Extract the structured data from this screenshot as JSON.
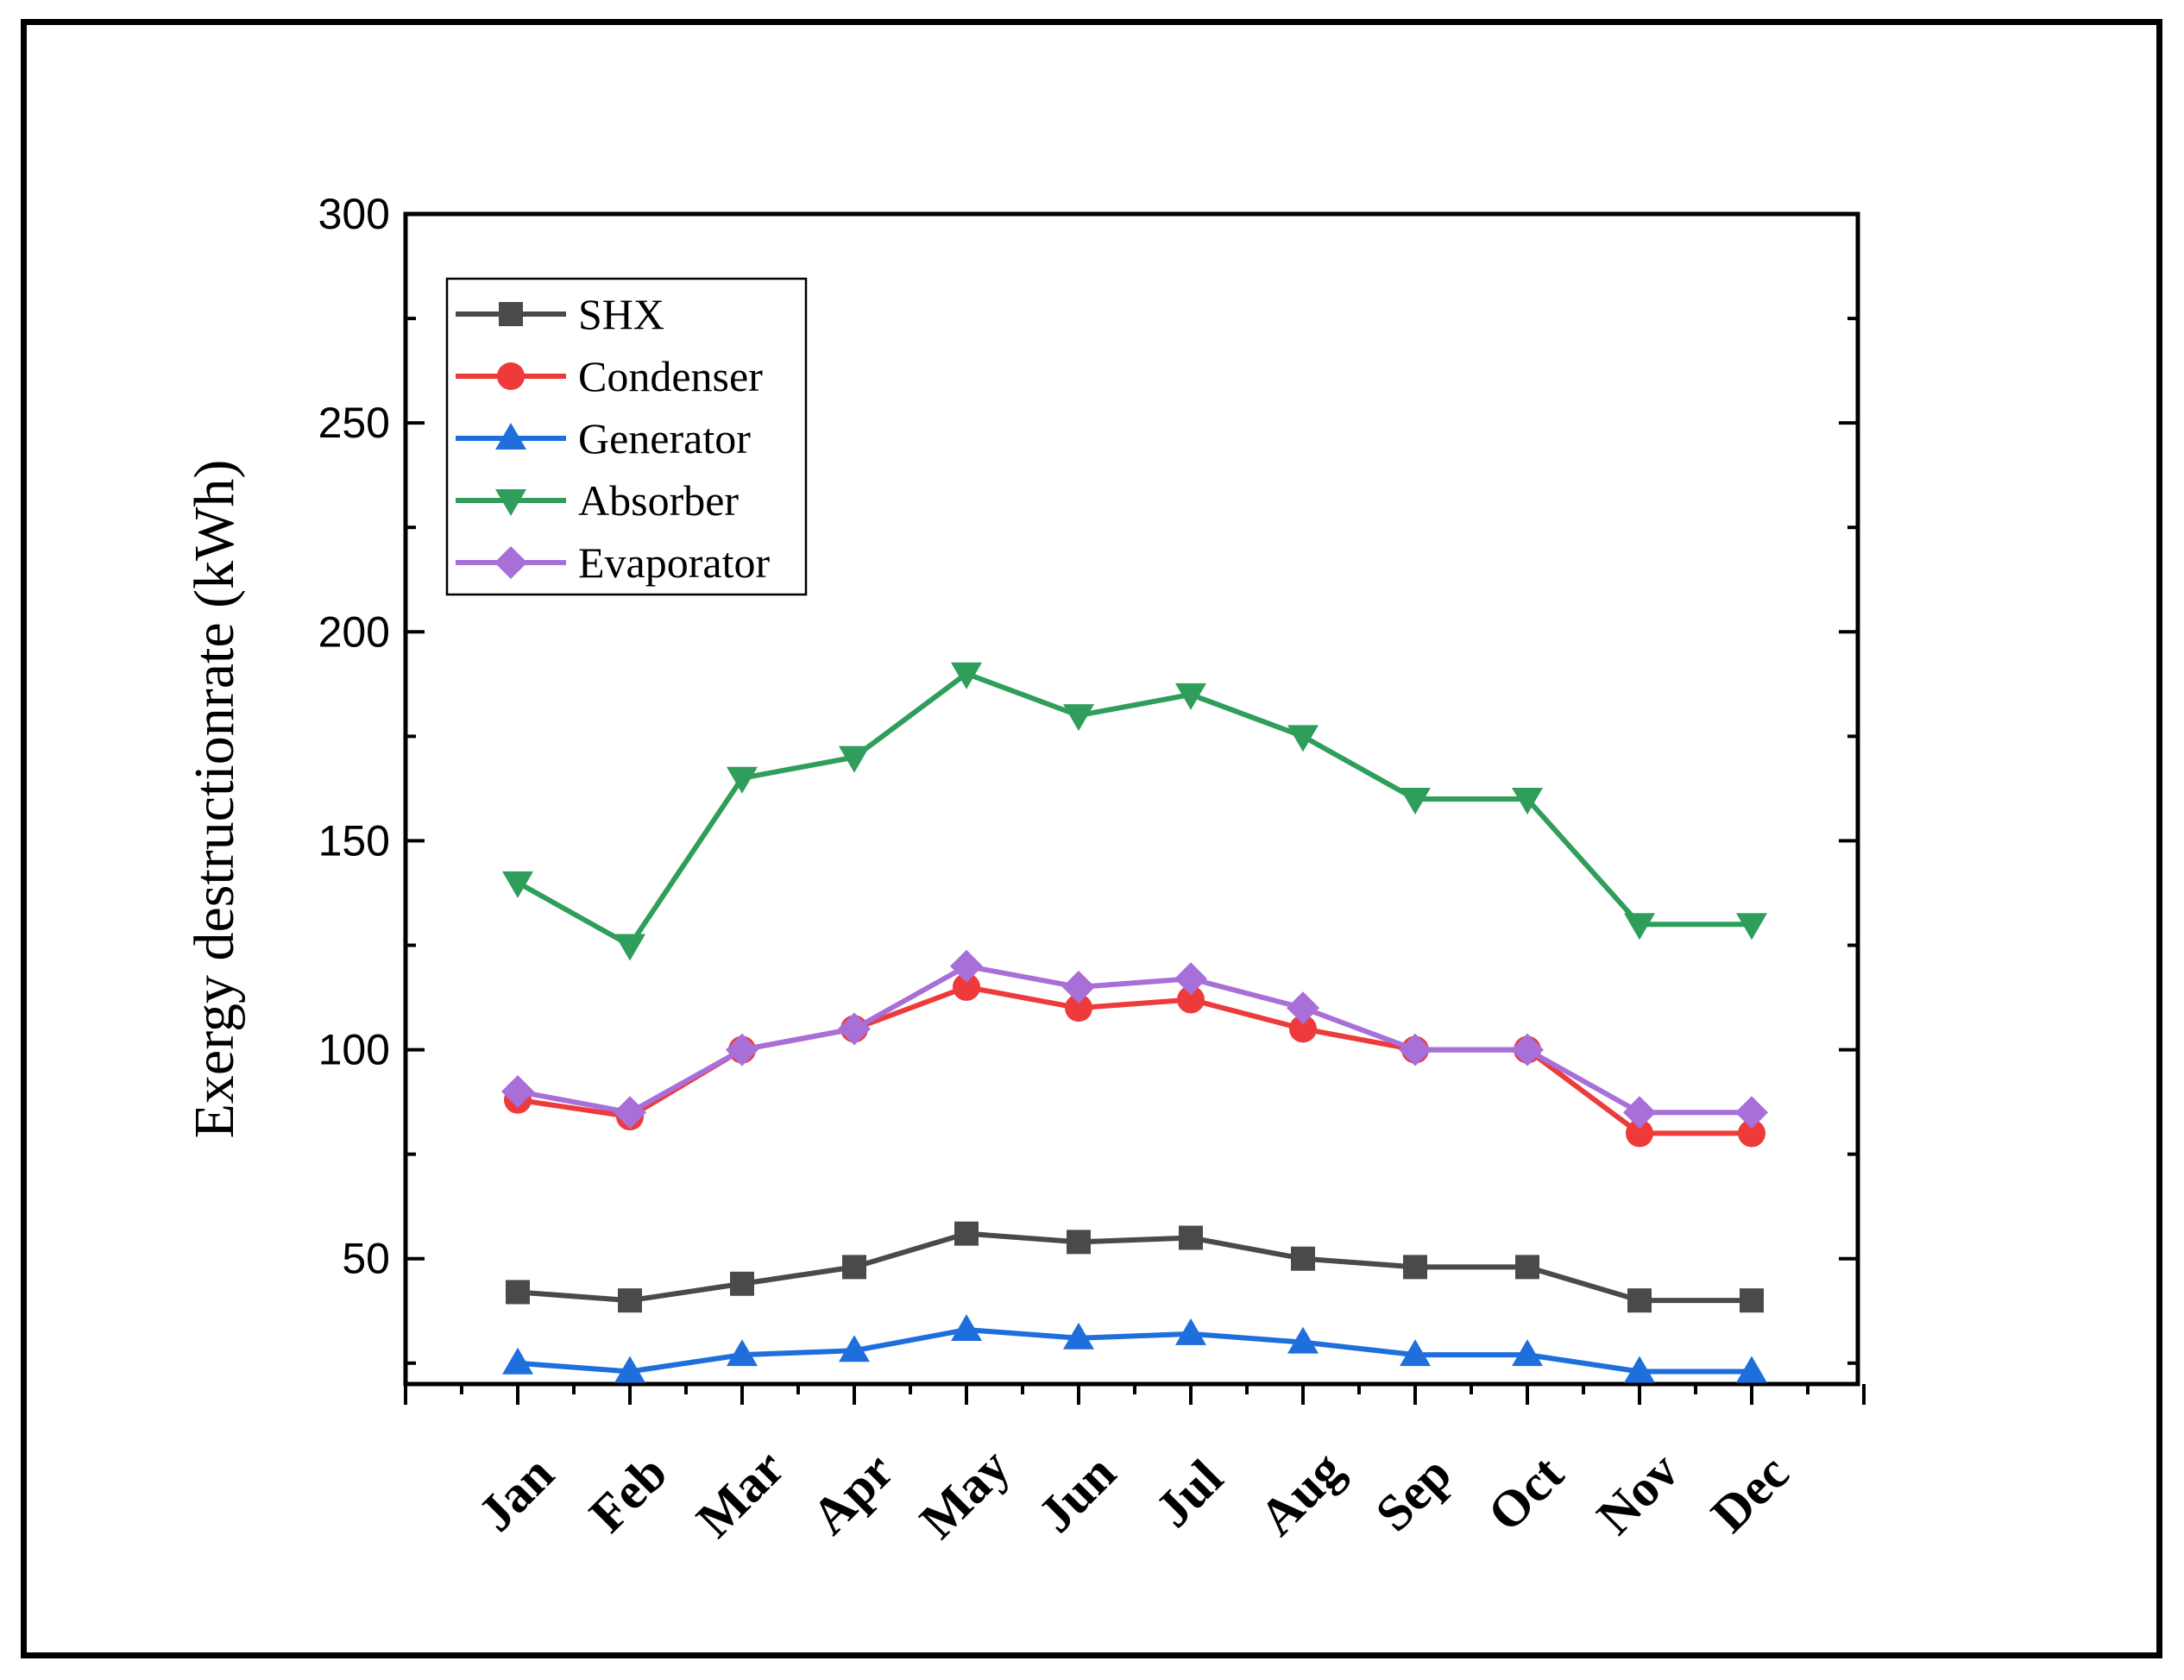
{
  "chart_data": {
    "type": "line",
    "title": "",
    "xlabel": "",
    "ylabel": "Exergy destructionrate (kWh)",
    "categories": [
      "Jan",
      "Feb",
      "Mar",
      "Apr",
      "May",
      "Jun",
      "Jul",
      "Aug",
      "Sep",
      "Oct",
      "Nov",
      "Dec"
    ],
    "ylim": [
      20,
      300
    ],
    "yticks": [
      "50",
      "100",
      "150",
      "200",
      "250",
      "300"
    ],
    "legend_position": "top-left",
    "grid": false,
    "series": [
      {
        "name": "SHX",
        "color": "#4a4a4a",
        "marker": "square",
        "values": [
          42,
          40,
          44,
          48,
          56,
          54,
          55,
          50,
          48,
          48,
          40,
          40
        ]
      },
      {
        "name": "Condenser",
        "color": "#ee3a3a",
        "marker": "circle",
        "values": [
          88,
          84,
          100,
          105,
          115,
          110,
          112,
          105,
          100,
          100,
          80,
          80
        ]
      },
      {
        "name": "Generator",
        "color": "#1e6fdc",
        "marker": "triangle-up",
        "values": [
          25,
          23,
          27,
          28,
          33,
          31,
          32,
          30,
          27,
          27,
          23,
          23
        ]
      },
      {
        "name": "Absorber",
        "color": "#2f9e5b",
        "marker": "triangle-down",
        "values": [
          140,
          125,
          165,
          170,
          190,
          180,
          185,
          175,
          160,
          160,
          130,
          130
        ]
      },
      {
        "name": "Evaporator",
        "color": "#a86fd8",
        "marker": "diamond",
        "values": [
          90,
          85,
          100,
          105,
          120,
          115,
          117,
          110,
          100,
          100,
          85,
          85
        ]
      }
    ]
  }
}
